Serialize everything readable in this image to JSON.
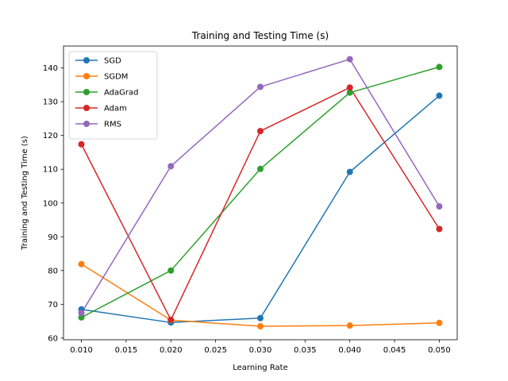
{
  "chart_data": {
    "type": "line",
    "title": "Training and Testing Time (s)",
    "xlabel": "Learning Rate",
    "ylabel": "Training and Testing Time (s)",
    "x": [
      0.01,
      0.02,
      0.03,
      0.04,
      0.05
    ],
    "xlim": [
      0.008,
      0.052
    ],
    "ylim": [
      59.5,
      146.5
    ],
    "xticks": [
      0.01,
      0.015,
      0.02,
      0.025,
      0.03,
      0.035,
      0.04,
      0.045,
      0.05
    ],
    "xtick_labels": [
      "0.010",
      "0.015",
      "0.020",
      "0.025",
      "0.030",
      "0.035",
      "0.040",
      "0.045",
      "0.050"
    ],
    "yticks": [
      60,
      70,
      80,
      90,
      100,
      110,
      120,
      130,
      140
    ],
    "ytick_labels": [
      "60",
      "70",
      "80",
      "90",
      "100",
      "110",
      "120",
      "130",
      "140"
    ],
    "grid": false,
    "legend_position": "upper-left",
    "series": [
      {
        "name": "SGD",
        "color": "#1f77b4",
        "values": [
          68.5,
          64.6,
          65.9,
          109.2,
          131.8
        ]
      },
      {
        "name": "SGDM",
        "color": "#ff7f0e",
        "values": [
          81.9,
          65.3,
          63.5,
          63.7,
          64.5
        ]
      },
      {
        "name": "AdaGrad",
        "color": "#2ca02c",
        "values": [
          66.1,
          80.0,
          110.1,
          132.7,
          140.3
        ]
      },
      {
        "name": "Adam",
        "color": "#d62728",
        "values": [
          117.4,
          65.4,
          121.3,
          134.2,
          92.3
        ]
      },
      {
        "name": "RMS",
        "color": "#9467bd",
        "values": [
          67.4,
          110.9,
          134.4,
          142.6,
          99.0
        ]
      }
    ]
  }
}
